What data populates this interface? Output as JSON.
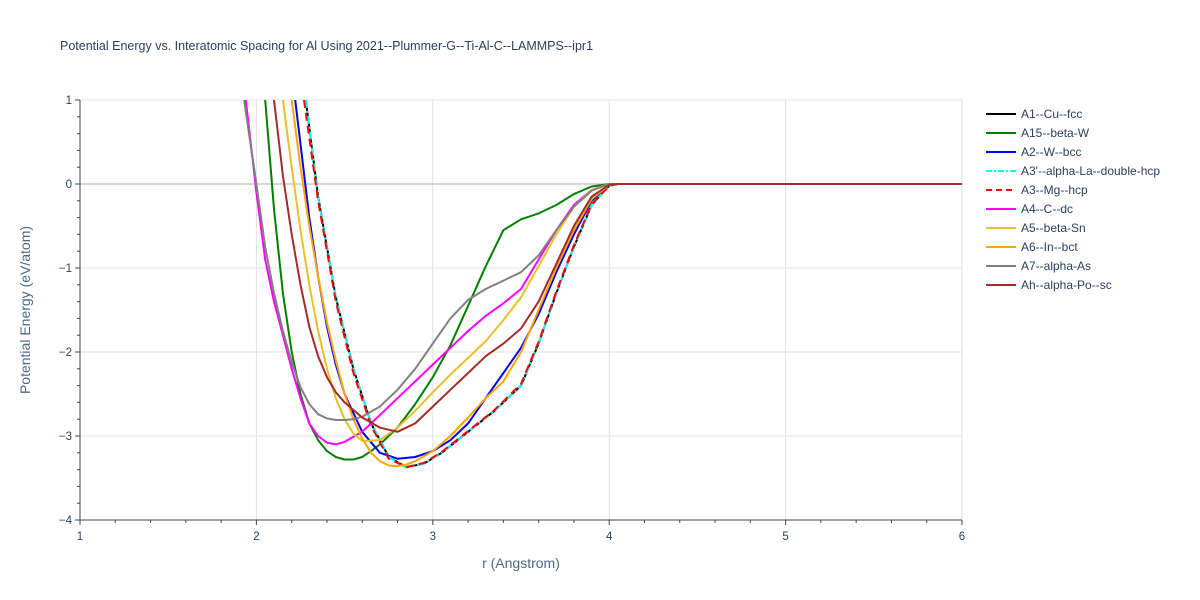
{
  "chart_data": {
    "type": "line",
    "title": "Potential Energy vs. Interatomic Spacing for Al Using 2021--Plummer-G--Ti-Al-C--LAMMPS--ipr1",
    "xlabel": "r (Angstrom)",
    "ylabel": "Potential Energy (eV/atom)",
    "xlim": [
      1,
      6
    ],
    "ylim": [
      -4,
      1
    ],
    "xticks": [
      "1",
      "2",
      "3",
      "4",
      "5",
      "6"
    ],
    "yticks": [
      "1",
      "0",
      "−1",
      "−2",
      "−3",
      "−4"
    ],
    "grid": true,
    "legend_position": "right",
    "series": [
      {
        "name": "A1--Cu--fcc",
        "color": "#000000",
        "dash": "solid",
        "x": [
          2.28,
          2.35,
          2.45,
          2.55,
          2.65,
          2.75,
          2.85,
          2.95,
          3.05,
          3.2,
          3.35,
          3.5,
          3.6,
          3.7,
          3.8,
          3.9,
          4.0,
          4.05,
          6.0
        ],
        "y": [
          1.0,
          -0.15,
          -1.35,
          -2.2,
          -2.85,
          -3.25,
          -3.37,
          -3.33,
          -3.2,
          -2.95,
          -2.7,
          -2.4,
          -1.9,
          -1.3,
          -0.75,
          -0.25,
          -0.02,
          0.0,
          0.0
        ]
      },
      {
        "name": "A15--beta-W",
        "color": "#008000",
        "dash": "solid",
        "x": [
          2.05,
          2.1,
          2.15,
          2.2,
          2.25,
          2.3,
          2.35,
          2.4,
          2.45,
          2.5,
          2.55,
          2.6,
          2.65,
          2.7,
          2.8,
          2.9,
          3.0,
          3.1,
          3.2,
          3.3,
          3.4,
          3.5,
          3.6,
          3.7,
          3.8,
          3.9,
          4.0,
          4.05,
          6.0
        ],
        "y": [
          1.0,
          -0.3,
          -1.3,
          -2.0,
          -2.5,
          -2.85,
          -3.05,
          -3.18,
          -3.25,
          -3.28,
          -3.28,
          -3.25,
          -3.18,
          -3.1,
          -2.9,
          -2.62,
          -2.3,
          -1.92,
          -1.45,
          -0.98,
          -0.55,
          -0.42,
          -0.35,
          -0.25,
          -0.12,
          -0.03,
          0.0,
          0.0,
          0.0
        ]
      },
      {
        "name": "A2--W--bcc",
        "color": "#0000ff",
        "dash": "solid",
        "x": [
          2.22,
          2.3,
          2.35,
          2.4,
          2.45,
          2.5,
          2.6,
          2.7,
          2.8,
          2.9,
          3.0,
          3.1,
          3.2,
          3.3,
          3.4,
          3.5,
          3.6,
          3.7,
          3.8,
          3.9,
          4.0,
          4.05,
          6.0
        ],
        "y": [
          1.0,
          -0.4,
          -1.1,
          -1.7,
          -2.15,
          -2.5,
          -2.95,
          -3.2,
          -3.27,
          -3.25,
          -3.18,
          -3.05,
          -2.85,
          -2.55,
          -2.25,
          -1.95,
          -1.55,
          -1.05,
          -0.6,
          -0.2,
          -0.01,
          0.0,
          0.0
        ]
      },
      {
        "name": "A3'--alpha-La--double-hcp",
        "color": "#00ffff",
        "dash": "dashdot",
        "x": [
          2.28,
          2.35,
          2.45,
          2.55,
          2.65,
          2.75,
          2.85,
          2.95,
          3.05,
          3.2,
          3.35,
          3.5,
          3.6,
          3.7,
          3.8,
          3.9,
          4.0,
          4.05,
          6.0
        ],
        "y": [
          1.0,
          -0.15,
          -1.35,
          -2.2,
          -2.85,
          -3.25,
          -3.37,
          -3.33,
          -3.2,
          -2.95,
          -2.7,
          -2.4,
          -1.9,
          -1.3,
          -0.75,
          -0.25,
          -0.02,
          0.0,
          0.0
        ]
      },
      {
        "name": "A3--Mg--hcp",
        "color": "#ff0000",
        "dash": "dash",
        "x": [
          2.27,
          2.35,
          2.45,
          2.55,
          2.65,
          2.75,
          2.85,
          2.95,
          3.05,
          3.2,
          3.35,
          3.5,
          3.6,
          3.7,
          3.8,
          3.9,
          4.0,
          4.05,
          6.0
        ],
        "y": [
          1.0,
          -0.2,
          -1.4,
          -2.25,
          -2.88,
          -3.27,
          -3.37,
          -3.32,
          -3.19,
          -2.94,
          -2.69,
          -2.38,
          -1.88,
          -1.28,
          -0.73,
          -0.24,
          -0.02,
          0.0,
          0.0
        ]
      },
      {
        "name": "A4--C--dc",
        "color": "#ff00ff",
        "dash": "solid",
        "x": [
          1.94,
          2.0,
          2.05,
          2.1,
          2.15,
          2.2,
          2.25,
          2.3,
          2.35,
          2.4,
          2.45,
          2.5,
          2.6,
          2.7,
          2.8,
          2.9,
          3.0,
          3.1,
          3.2,
          3.3,
          3.4,
          3.5,
          3.6,
          3.7,
          3.8,
          3.9,
          4.0,
          4.05,
          6.0
        ],
        "y": [
          1.0,
          -0.1,
          -0.9,
          -1.4,
          -1.8,
          -2.2,
          -2.55,
          -2.85,
          -3.0,
          -3.08,
          -3.1,
          -3.07,
          -2.95,
          -2.75,
          -2.55,
          -2.35,
          -2.15,
          -1.95,
          -1.75,
          -1.57,
          -1.42,
          -1.25,
          -0.9,
          -0.55,
          -0.25,
          -0.07,
          0.0,
          0.0,
          0.0
        ]
      },
      {
        "name": "A5--beta-Sn",
        "color": "#e6c229",
        "dash": "solid",
        "x": [
          2.15,
          2.2,
          2.25,
          2.3,
          2.35,
          2.4,
          2.45,
          2.5,
          2.55,
          2.6,
          2.7,
          2.8,
          2.9,
          3.0,
          3.1,
          3.2,
          3.3,
          3.4,
          3.5,
          3.6,
          3.7,
          3.8,
          3.9,
          4.0,
          4.05,
          6.0
        ],
        "y": [
          1.0,
          0.2,
          -0.55,
          -1.2,
          -1.75,
          -2.2,
          -2.55,
          -2.8,
          -2.97,
          -3.06,
          -3.05,
          -2.9,
          -2.7,
          -2.48,
          -2.27,
          -2.07,
          -1.87,
          -1.62,
          -1.35,
          -0.98,
          -0.6,
          -0.27,
          -0.07,
          0.0,
          0.0,
          0.0
        ]
      },
      {
        "name": "A6--In--bct",
        "color": "#ffa500",
        "dash": "solid",
        "x": [
          2.2,
          2.25,
          2.3,
          2.35,
          2.4,
          2.45,
          2.5,
          2.55,
          2.6,
          2.65,
          2.7,
          2.75,
          2.8,
          2.85,
          2.9,
          3.0,
          3.1,
          3.2,
          3.3,
          3.4,
          3.5,
          3.6,
          3.7,
          3.8,
          3.9,
          4.0,
          4.05,
          6.0
        ],
        "y": [
          1.0,
          0.2,
          -0.5,
          -1.1,
          -1.65,
          -2.1,
          -2.5,
          -2.8,
          -3.03,
          -3.2,
          -3.3,
          -3.35,
          -3.36,
          -3.34,
          -3.3,
          -3.18,
          -3.0,
          -2.78,
          -2.55,
          -2.35,
          -2.0,
          -1.5,
          -1.0,
          -0.55,
          -0.18,
          -0.01,
          0.0,
          0.0
        ]
      },
      {
        "name": "A7--alpha-As",
        "color": "#808080",
        "dash": "solid",
        "x": [
          1.93,
          2.0,
          2.05,
          2.1,
          2.15,
          2.2,
          2.25,
          2.3,
          2.35,
          2.4,
          2.45,
          2.5,
          2.55,
          2.6,
          2.7,
          2.8,
          2.9,
          3.0,
          3.1,
          3.2,
          3.3,
          3.4,
          3.5,
          3.6,
          3.7,
          3.8,
          3.9,
          4.0,
          4.05,
          6.0
        ],
        "y": [
          1.0,
          0.0,
          -0.75,
          -1.3,
          -1.75,
          -2.12,
          -2.42,
          -2.62,
          -2.74,
          -2.79,
          -2.81,
          -2.81,
          -2.8,
          -2.77,
          -2.65,
          -2.45,
          -2.2,
          -1.9,
          -1.6,
          -1.38,
          -1.25,
          -1.15,
          -1.05,
          -0.85,
          -0.55,
          -0.27,
          -0.08,
          0.0,
          0.0,
          0.0
        ]
      },
      {
        "name": "Ah--alpha-Po--sc",
        "color": "#a52a2a",
        "dash": "solid",
        "x": [
          2.1,
          2.15,
          2.2,
          2.25,
          2.3,
          2.35,
          2.4,
          2.45,
          2.5,
          2.6,
          2.7,
          2.8,
          2.9,
          3.0,
          3.1,
          3.2,
          3.3,
          3.4,
          3.5,
          3.6,
          3.7,
          3.8,
          3.9,
          4.0,
          4.05,
          6.0
        ],
        "y": [
          1.0,
          0.1,
          -0.6,
          -1.2,
          -1.7,
          -2.05,
          -2.3,
          -2.48,
          -2.6,
          -2.78,
          -2.9,
          -2.95,
          -2.85,
          -2.65,
          -2.45,
          -2.25,
          -2.05,
          -1.9,
          -1.72,
          -1.4,
          -0.95,
          -0.5,
          -0.15,
          -0.01,
          0.0,
          0.0
        ]
      }
    ]
  }
}
